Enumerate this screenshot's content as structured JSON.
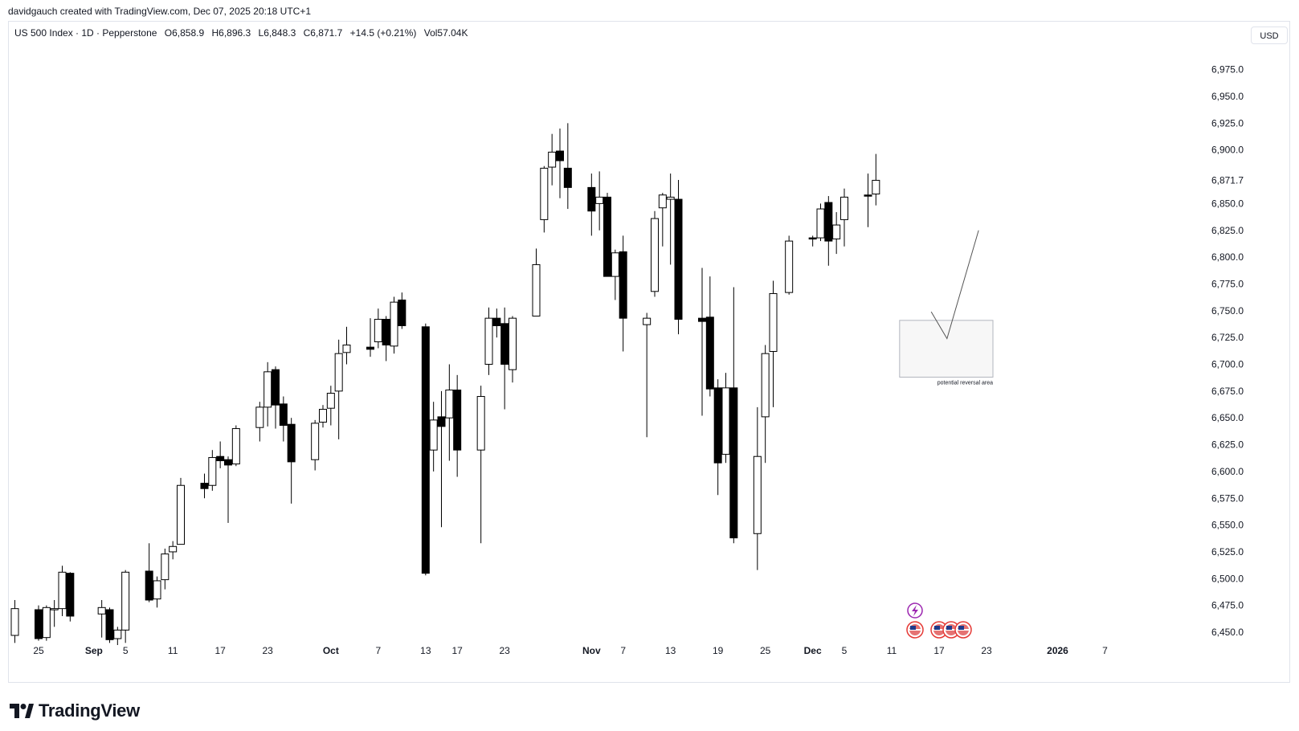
{
  "header": {
    "credit": "davidgauch created with TradingView.com, Dec 07, 2025 20:18 UTC+1"
  },
  "legend": {
    "symbol": "US 500 Index · 1D · Pepperstone",
    "open": "O6,858.9",
    "high": "H6,896.3",
    "low": "L6,848.3",
    "close": "C6,871.7",
    "change": "+14.5 (+0.21%)",
    "volume": "Vol57.04K"
  },
  "currency": "USD",
  "brand": "TradingView",
  "chart_data": {
    "type": "candlestick",
    "y_axis": {
      "range": [
        6440,
        6995
      ],
      "ticks": [
        6450,
        6475,
        6500,
        6525,
        6550,
        6575,
        6600,
        6625,
        6650,
        6675,
        6700,
        6725,
        6750,
        6775,
        6800,
        6825,
        6850,
        6875,
        6900,
        6925,
        6950,
        6975
      ],
      "tick_labels": [
        "6,450.0",
        "6,475.0",
        "6,500.0",
        "6,525.0",
        "6,550.0",
        "6,575.0",
        "6,600.0",
        "6,625.0",
        "6,650.0",
        "6,675.0",
        "6,700.0",
        "6,725.0",
        "6,750.0",
        "6,775.0",
        "6,800.0",
        "6,825.0",
        "6,850.0",
        "6,875.0",
        "6,900.0",
        "6,925.0",
        "6,950.0",
        "6,975.0"
      ],
      "last_price_label": "6,871.7",
      "last_price": 6871.7
    },
    "x_axis": {
      "labels": [
        {
          "date": "2025-08-25",
          "text": "25"
        },
        {
          "date": "2025-09-01",
          "text": "Sep"
        },
        {
          "date": "2025-09-05",
          "text": "5"
        },
        {
          "date": "2025-09-11",
          "text": "11"
        },
        {
          "date": "2025-09-17",
          "text": "17"
        },
        {
          "date": "2025-09-23",
          "text": "23"
        },
        {
          "date": "2025-10-01",
          "text": "Oct"
        },
        {
          "date": "2025-10-07",
          "text": "7"
        },
        {
          "date": "2025-10-13",
          "text": "13"
        },
        {
          "date": "2025-10-17",
          "text": "17"
        },
        {
          "date": "2025-10-23",
          "text": "23"
        },
        {
          "date": "2025-11-03",
          "text": "Nov"
        },
        {
          "date": "2025-11-07",
          "text": "7"
        },
        {
          "date": "2025-11-13",
          "text": "13"
        },
        {
          "date": "2025-11-19",
          "text": "19"
        },
        {
          "date": "2025-11-25",
          "text": "25"
        },
        {
          "date": "2025-12-01",
          "text": "Dec"
        },
        {
          "date": "2025-12-05",
          "text": "5"
        },
        {
          "date": "2025-12-11",
          "text": "11"
        },
        {
          "date": "2025-12-17",
          "text": "17"
        },
        {
          "date": "2025-12-23",
          "text": "23"
        },
        {
          "date": "2026-01-01",
          "text": "2026"
        },
        {
          "date": "2026-01-07",
          "text": "7"
        }
      ]
    },
    "candles": [
      {
        "d": "2025-08-22",
        "o": 6447,
        "h": 6480,
        "l": 6440,
        "c": 6472
      },
      {
        "d": "2025-08-25",
        "o": 6471,
        "h": 6475,
        "l": 6442,
        "c": 6444
      },
      {
        "d": "2025-08-26",
        "o": 6445,
        "h": 6475,
        "l": 6442,
        "c": 6473
      },
      {
        "d": "2025-08-27",
        "o": 6472,
        "h": 6480,
        "l": 6455,
        "c": 6472
      },
      {
        "d": "2025-08-28",
        "o": 6472,
        "h": 6512,
        "l": 6465,
        "c": 6506
      },
      {
        "d": "2025-08-29",
        "o": 6505,
        "h": 6506,
        "l": 6460,
        "c": 6465
      },
      {
        "d": "2025-09-02",
        "o": 6467,
        "h": 6480,
        "l": 6445,
        "c": 6473
      },
      {
        "d": "2025-09-03",
        "o": 6471,
        "h": 6473,
        "l": 6440,
        "c": 6443
      },
      {
        "d": "2025-09-04",
        "o": 6444,
        "h": 6455,
        "l": 6438,
        "c": 6452
      },
      {
        "d": "2025-09-05",
        "o": 6452,
        "h": 6508,
        "l": 6440,
        "c": 6506
      },
      {
        "d": "2025-09-08",
        "o": 6507,
        "h": 6533,
        "l": 6478,
        "c": 6480
      },
      {
        "d": "2025-09-09",
        "o": 6481,
        "h": 6502,
        "l": 6473,
        "c": 6498
      },
      {
        "d": "2025-09-10",
        "o": 6499,
        "h": 6528,
        "l": 6490,
        "c": 6523
      },
      {
        "d": "2025-09-11",
        "o": 6525,
        "h": 6535,
        "l": 6518,
        "c": 6530
      },
      {
        "d": "2025-09-12",
        "o": 6532,
        "h": 6594,
        "l": 6532,
        "c": 6587
      },
      {
        "d": "2025-09-15",
        "o": 6589,
        "h": 6598,
        "l": 6575,
        "c": 6584
      },
      {
        "d": "2025-09-16",
        "o": 6587,
        "h": 6620,
        "l": 6582,
        "c": 6613
      },
      {
        "d": "2025-09-17",
        "o": 6614,
        "h": 6628,
        "l": 6603,
        "c": 6610
      },
      {
        "d": "2025-09-18",
        "o": 6611,
        "h": 6614,
        "l": 6552,
        "c": 6606
      },
      {
        "d": "2025-09-19",
        "o": 6607,
        "h": 6643,
        "l": 6605,
        "c": 6640
      },
      {
        "d": "2025-09-22",
        "o": 6641,
        "h": 6665,
        "l": 6628,
        "c": 6660
      },
      {
        "d": "2025-09-23",
        "o": 6660,
        "h": 6702,
        "l": 6642,
        "c": 6693
      },
      {
        "d": "2025-09-24",
        "o": 6695,
        "h": 6698,
        "l": 6640,
        "c": 6662
      },
      {
        "d": "2025-09-25",
        "o": 6663,
        "h": 6670,
        "l": 6628,
        "c": 6643
      },
      {
        "d": "2025-09-26",
        "o": 6644,
        "h": 6650,
        "l": 6570,
        "c": 6609
      },
      {
        "d": "2025-09-29",
        "o": 6611,
        "h": 6648,
        "l": 6601,
        "c": 6645
      },
      {
        "d": "2025-09-30",
        "o": 6646,
        "h": 6662,
        "l": 6641,
        "c": 6658
      },
      {
        "d": "2025-10-01",
        "o": 6659,
        "h": 6680,
        "l": 6643,
        "c": 6673
      },
      {
        "d": "2025-10-02",
        "o": 6675,
        "h": 6723,
        "l": 6630,
        "c": 6710
      },
      {
        "d": "2025-10-03",
        "o": 6711,
        "h": 6735,
        "l": 6700,
        "c": 6718
      },
      {
        "d": "2025-10-06",
        "o": 6716,
        "h": 6743,
        "l": 6707,
        "c": 6714
      },
      {
        "d": "2025-10-07",
        "o": 6721,
        "h": 6752,
        "l": 6715,
        "c": 6742
      },
      {
        "d": "2025-10-08",
        "o": 6742,
        "h": 6745,
        "l": 6703,
        "c": 6718
      },
      {
        "d": "2025-10-09",
        "o": 6717,
        "h": 6763,
        "l": 6710,
        "c": 6758
      },
      {
        "d": "2025-10-10",
        "o": 6760,
        "h": 6767,
        "l": 6733,
        "c": 6736
      },
      {
        "d": "2025-10-13",
        "o": 6735,
        "h": 6738,
        "l": 6503,
        "c": 6505
      },
      {
        "d": "2025-10-14",
        "o": 6620,
        "h": 6665,
        "l": 6600,
        "c": 6648
      },
      {
        "d": "2025-10-15",
        "o": 6651,
        "h": 6675,
        "l": 6548,
        "c": 6642
      },
      {
        "d": "2025-10-16",
        "o": 6650,
        "h": 6700,
        "l": 6610,
        "c": 6676
      },
      {
        "d": "2025-10-17",
        "o": 6676,
        "h": 6690,
        "l": 6595,
        "c": 6620
      },
      {
        "d": "2025-10-20",
        "o": 6620,
        "h": 6680,
        "l": 6533,
        "c": 6670
      },
      {
        "d": "2025-10-21",
        "o": 6700,
        "h": 6753,
        "l": 6690,
        "c": 6743
      },
      {
        "d": "2025-10-22",
        "o": 6743,
        "h": 6752,
        "l": 6725,
        "c": 6736
      },
      {
        "d": "2025-10-23",
        "o": 6738,
        "h": 6753,
        "l": 6658,
        "c": 6700
      },
      {
        "d": "2025-10-24",
        "o": 6695,
        "h": 6745,
        "l": 6683,
        "c": 6743
      },
      {
        "d": "2025-10-27",
        "o": 6745,
        "h": 6808,
        "l": 6745,
        "c": 6793
      },
      {
        "d": "2025-10-28",
        "o": 6835,
        "h": 6885,
        "l": 6823,
        "c": 6883
      },
      {
        "d": "2025-10-29",
        "o": 6884,
        "h": 6915,
        "l": 6867,
        "c": 6898
      },
      {
        "d": "2025-10-30",
        "o": 6899,
        "h": 6920,
        "l": 6855,
        "c": 6890
      },
      {
        "d": "2025-10-31",
        "o": 6883,
        "h": 6925,
        "l": 6845,
        "c": 6865
      },
      {
        "d": "2025-11-03",
        "o": 6865,
        "h": 6878,
        "l": 6820,
        "c": 6843
      },
      {
        "d": "2025-11-04",
        "o": 6850,
        "h": 6880,
        "l": 6825,
        "c": 6856
      },
      {
        "d": "2025-11-05",
        "o": 6856,
        "h": 6860,
        "l": 6782,
        "c": 6782
      },
      {
        "d": "2025-11-06",
        "o": 6782,
        "h": 6807,
        "l": 6760,
        "c": 6804
      },
      {
        "d": "2025-11-07",
        "o": 6805,
        "h": 6820,
        "l": 6712,
        "c": 6743
      },
      {
        "d": "2025-11-10",
        "o": 6737,
        "h": 6748,
        "l": 6632,
        "c": 6743
      },
      {
        "d": "2025-11-11",
        "o": 6768,
        "h": 6843,
        "l": 6763,
        "c": 6836
      },
      {
        "d": "2025-11-12",
        "o": 6846,
        "h": 6860,
        "l": 6810,
        "c": 6858
      },
      {
        "d": "2025-11-13",
        "o": 6854,
        "h": 6878,
        "l": 6793,
        "c": 6856
      },
      {
        "d": "2025-11-14",
        "o": 6854,
        "h": 6872,
        "l": 6728,
        "c": 6742
      },
      {
        "d": "2025-11-17",
        "o": 6743,
        "h": 6790,
        "l": 6652,
        "c": 6740
      },
      {
        "d": "2025-11-18",
        "o": 6744,
        "h": 6782,
        "l": 6670,
        "c": 6677
      },
      {
        "d": "2025-11-19",
        "o": 6678,
        "h": 6686,
        "l": 6578,
        "c": 6608
      },
      {
        "d": "2025-11-20",
        "o": 6616,
        "h": 6692,
        "l": 6608,
        "c": 6678
      },
      {
        "d": "2025-11-21",
        "o": 6678,
        "h": 6772,
        "l": 6533,
        "c": 6538
      },
      {
        "d": "2025-11-24",
        "o": 6542,
        "h": 6660,
        "l": 6508,
        "c": 6614
      },
      {
        "d": "2025-11-25",
        "o": 6651,
        "h": 6718,
        "l": 6608,
        "c": 6710
      },
      {
        "d": "2025-11-26",
        "o": 6712,
        "h": 6778,
        "l": 6660,
        "c": 6766
      },
      {
        "d": "2025-11-28",
        "o": 6767,
        "h": 6820,
        "l": 6765,
        "c": 6815
      },
      {
        "d": "2025-12-01",
        "o": 6818,
        "h": 6820,
        "l": 6810,
        "c": 6817
      },
      {
        "d": "2025-12-02",
        "o": 6818,
        "h": 6850,
        "l": 6815,
        "c": 6845
      },
      {
        "d": "2025-12-03",
        "o": 6851,
        "h": 6857,
        "l": 6792,
        "c": 6815
      },
      {
        "d": "2025-12-04",
        "o": 6817,
        "h": 6842,
        "l": 6803,
        "c": 6830
      },
      {
        "d": "2025-12-05",
        "o": 6835,
        "h": 6864,
        "l": 6810,
        "c": 6856
      },
      {
        "d": "2025-12-08",
        "o": 6858,
        "h": 6878,
        "l": 6828,
        "c": 6857
      },
      {
        "d": "2025-12-09",
        "o": 6858.9,
        "h": 6896.3,
        "l": 6848.3,
        "c": 6871.7
      }
    ],
    "annotations": {
      "zone": {
        "from_date": "2025-12-12",
        "to_date": "2025-12-23",
        "low": 6688,
        "high": 6741,
        "label": "potential reversal area"
      },
      "path": [
        {
          "date": "2025-12-16",
          "price": 6749
        },
        {
          "date": "2025-12-18",
          "price": 6724
        },
        {
          "date": "2025-12-22",
          "price": 6825
        }
      ]
    },
    "grid": false,
    "colors": {
      "up_body": "#ffffff",
      "down_body": "#000000",
      "wick": "#000000",
      "zone_fill": "#f7f7f7",
      "zone_border": "#b2b5be"
    }
  }
}
